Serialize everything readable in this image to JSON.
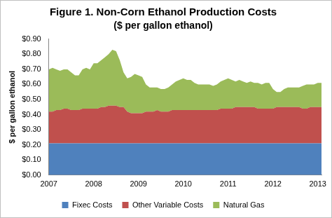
{
  "chart_data": {
    "type": "area",
    "title": "Figure 1. Non-Corn Ethanol Production Costs",
    "subtitle": "($ per gallon ethanol)",
    "y_label": "$ per gallon ethanol",
    "stacked": true,
    "grid": false,
    "legend": "bottom",
    "categories": [
      "2007",
      null,
      null,
      null,
      null,
      null,
      null,
      null,
      null,
      null,
      null,
      null,
      "2008",
      null,
      null,
      null,
      null,
      null,
      null,
      null,
      null,
      null,
      null,
      null,
      "2009",
      null,
      null,
      null,
      null,
      null,
      null,
      null,
      null,
      null,
      null,
      null,
      "2010",
      null,
      null,
      null,
      null,
      null,
      null,
      null,
      null,
      null,
      null,
      null,
      "2011",
      null,
      null,
      null,
      null,
      null,
      null,
      null,
      null,
      null,
      null,
      null,
      "2012",
      null,
      null,
      null,
      null,
      null,
      null,
      null,
      null,
      null,
      null,
      null,
      "2013",
      null
    ],
    "ylim": [
      0,
      0.9
    ],
    "yticks": [
      {
        "value": 0,
        "label": "$0.00"
      },
      {
        "value": 0.1,
        "label": "$0.10"
      },
      {
        "value": 0.2,
        "label": "$0.20"
      },
      {
        "value": 0.3,
        "label": "$0.30"
      },
      {
        "value": 0.4,
        "label": "$0.40"
      },
      {
        "value": 0.5,
        "label": "$0.50"
      },
      {
        "value": 0.6,
        "label": "$0.60"
      },
      {
        "value": 0.7,
        "label": "$0.70"
      },
      {
        "value": 0.8,
        "label": "$0.80"
      },
      {
        "value": 0.9,
        "label": "$0.90"
      }
    ],
    "series": [
      {
        "name": "Fixec Costs",
        "color": "#4f81bd",
        "values": [
          0.21,
          0.21,
          0.21,
          0.21,
          0.21,
          0.21,
          0.21,
          0.21,
          0.21,
          0.21,
          0.21,
          0.21,
          0.21,
          0.21,
          0.21,
          0.21,
          0.21,
          0.21,
          0.21,
          0.21,
          0.21,
          0.21,
          0.21,
          0.21,
          0.21,
          0.21,
          0.21,
          0.21,
          0.21,
          0.21,
          0.21,
          0.21,
          0.21,
          0.21,
          0.21,
          0.21,
          0.21,
          0.21,
          0.21,
          0.21,
          0.21,
          0.21,
          0.21,
          0.21,
          0.21,
          0.21,
          0.21,
          0.21,
          0.21,
          0.21,
          0.21,
          0.21,
          0.21,
          0.21,
          0.21,
          0.21,
          0.21,
          0.21,
          0.21,
          0.21,
          0.21,
          0.21,
          0.21,
          0.21,
          0.21,
          0.21,
          0.21,
          0.21,
          0.21,
          0.21,
          0.21,
          0.21,
          0.21,
          0.21
        ]
      },
      {
        "name": "Other Variable Costs",
        "color": "#c0504d",
        "values": [
          0.21,
          0.21,
          0.22,
          0.22,
          0.23,
          0.23,
          0.22,
          0.22,
          0.22,
          0.23,
          0.23,
          0.23,
          0.23,
          0.23,
          0.24,
          0.24,
          0.25,
          0.25,
          0.25,
          0.24,
          0.24,
          0.21,
          0.2,
          0.2,
          0.2,
          0.2,
          0.21,
          0.21,
          0.21,
          0.22,
          0.21,
          0.21,
          0.21,
          0.22,
          0.22,
          0.22,
          0.22,
          0.22,
          0.22,
          0.22,
          0.22,
          0.22,
          0.22,
          0.22,
          0.22,
          0.22,
          0.23,
          0.23,
          0.23,
          0.23,
          0.24,
          0.24,
          0.24,
          0.24,
          0.24,
          0.24,
          0.23,
          0.23,
          0.23,
          0.23,
          0.23,
          0.24,
          0.24,
          0.24,
          0.24,
          0.24,
          0.24,
          0.24,
          0.23,
          0.23,
          0.24,
          0.24,
          0.24,
          0.24
        ]
      },
      {
        "name": "Natural Gas",
        "color": "#9bbb59",
        "values": [
          0.28,
          0.29,
          0.27,
          0.26,
          0.26,
          0.26,
          0.25,
          0.23,
          0.23,
          0.26,
          0.27,
          0.26,
          0.3,
          0.3,
          0.31,
          0.33,
          0.34,
          0.37,
          0.36,
          0.31,
          0.23,
          0.22,
          0.24,
          0.26,
          0.25,
          0.24,
          0.18,
          0.16,
          0.16,
          0.15,
          0.15,
          0.15,
          0.16,
          0.17,
          0.19,
          0.2,
          0.21,
          0.2,
          0.2,
          0.18,
          0.17,
          0.17,
          0.17,
          0.17,
          0.16,
          0.17,
          0.18,
          0.19,
          0.2,
          0.19,
          0.17,
          0.18,
          0.17,
          0.16,
          0.17,
          0.16,
          0.17,
          0.16,
          0.17,
          0.17,
          0.13,
          0.1,
          0.1,
          0.12,
          0.13,
          0.13,
          0.13,
          0.13,
          0.15,
          0.16,
          0.15,
          0.15,
          0.16,
          0.16
        ]
      }
    ]
  }
}
